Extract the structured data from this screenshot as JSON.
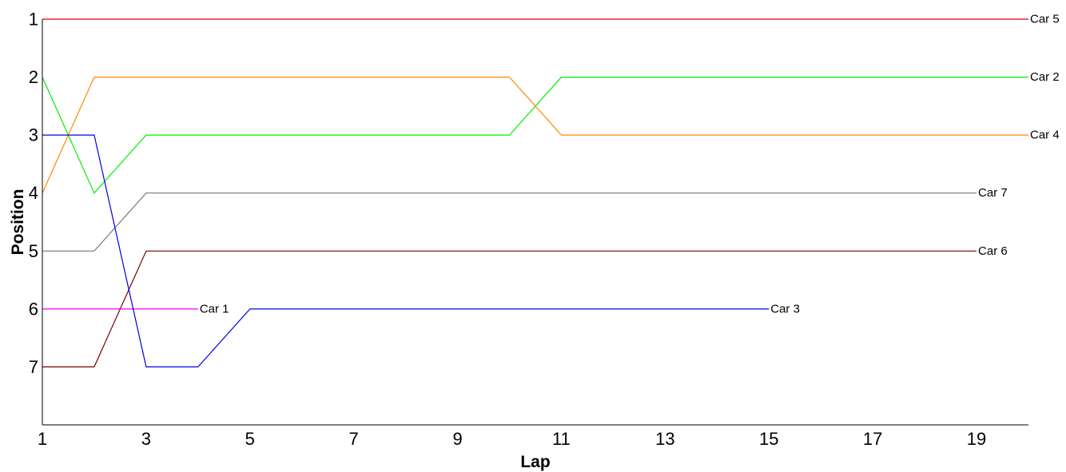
{
  "chart_data": {
    "type": "line",
    "xlabel": "Lap",
    "ylabel": "Position",
    "xlim": [
      1,
      20
    ],
    "ylim": [
      8,
      1
    ],
    "x_ticks": [
      "1",
      "3",
      "5",
      "7",
      "9",
      "11",
      "13",
      "15",
      "17",
      "19"
    ],
    "y_ticks": [
      "1",
      "2",
      "3",
      "4",
      "5",
      "6",
      "7"
    ],
    "grid": false,
    "legend": "none",
    "series": [
      {
        "name": "Car 5",
        "color": "#dd0000",
        "x": [
          1,
          20
        ],
        "y": [
          1,
          1
        ]
      },
      {
        "name": "Car 2",
        "color": "#00ee00",
        "x": [
          1,
          2,
          3,
          10,
          11,
          20
        ],
        "y": [
          2,
          4,
          3,
          3,
          2,
          2
        ]
      },
      {
        "name": "Car 4",
        "color": "#ff8800",
        "x": [
          1,
          2,
          10,
          11,
          20
        ],
        "y": [
          4,
          2,
          2,
          3,
          3
        ]
      },
      {
        "name": "Car 7",
        "color": "#777777",
        "x": [
          1,
          2,
          3,
          19
        ],
        "y": [
          5,
          5,
          4,
          4
        ]
      },
      {
        "name": "Car 6",
        "color": "#770000",
        "x": [
          1,
          2,
          3,
          19
        ],
        "y": [
          7,
          7,
          5,
          5
        ]
      },
      {
        "name": "Car 1",
        "color": "#ee00ee",
        "x": [
          1,
          4
        ],
        "y": [
          6,
          6
        ]
      },
      {
        "name": "Car 3",
        "color": "#0000dd",
        "x": [
          1,
          2,
          3,
          4,
          5,
          15
        ],
        "y": [
          3,
          3,
          7,
          7,
          6,
          6
        ]
      }
    ]
  }
}
